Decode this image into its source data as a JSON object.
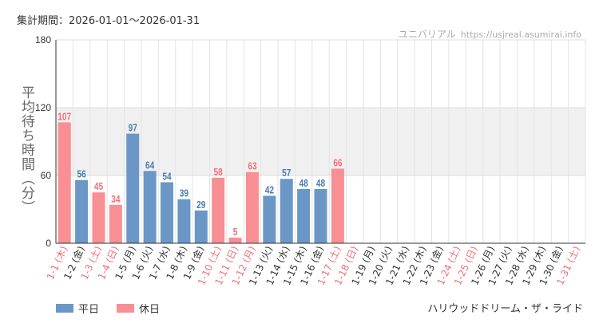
{
  "header": {
    "period": "集計期間：2026-01-01～2026-01-31",
    "source_name": "ユニバリアル",
    "source_site": "https://usjreal.asumirai.info"
  },
  "footer": {
    "ride_name": "ハリウッドドリーム・ザ・ライド"
  },
  "colors": {
    "weekday": "#6b97c7",
    "holiday": "#f88f94",
    "weekday_label": "#4a7bb0",
    "holiday_label": "#f36f76",
    "band": "#f0f0f0",
    "grid": "#e4e4e4"
  },
  "chart_data": {
    "type": "bar",
    "ylabel": "平均待ち時間（分）",
    "ylim": [
      0,
      180
    ],
    "yticks": [
      0,
      60,
      120,
      180
    ],
    "shaded_band": [
      60,
      120
    ],
    "legend": [
      {
        "name": "平日",
        "key": "weekday"
      },
      {
        "name": "休日",
        "key": "holiday"
      }
    ],
    "categories": [
      "1-1 (木)",
      "1-2 (金)",
      "1-3 (土)",
      "1-4 (日)",
      "1-5 (月)",
      "1-6 (火)",
      "1-7 (水)",
      "1-8 (木)",
      "1-9 (金)",
      "1-10 (土)",
      "1-11 (日)",
      "1-12 (月)",
      "1-13 (火)",
      "1-14 (水)",
      "1-15 (木)",
      "1-16 (金)",
      "1-17 (土)",
      "1-18 (日)",
      "1-19 (月)",
      "1-20 (火)",
      "1-21 (水)",
      "1-22 (木)",
      "1-23 (金)",
      "1-24 (土)",
      "1-25 (日)",
      "1-26 (月)",
      "1-27 (火)",
      "1-28 (水)",
      "1-29 (木)",
      "1-30 (金)",
      "1-31 (土)"
    ],
    "day_type": [
      "holiday",
      "weekday",
      "holiday",
      "holiday",
      "weekday",
      "weekday",
      "weekday",
      "weekday",
      "weekday",
      "holiday",
      "holiday",
      "holiday",
      "weekday",
      "weekday",
      "weekday",
      "weekday",
      "holiday",
      "holiday",
      "weekday",
      "weekday",
      "weekday",
      "weekday",
      "weekday",
      "holiday",
      "holiday",
      "weekday",
      "weekday",
      "weekday",
      "weekday",
      "weekday",
      "holiday"
    ],
    "values": [
      107,
      56,
      45,
      34,
      97,
      64,
      54,
      39,
      29,
      58,
      5,
      63,
      42,
      57,
      48,
      48,
      66,
      null,
      null,
      null,
      null,
      null,
      null,
      null,
      null,
      null,
      null,
      null,
      null,
      null,
      null
    ]
  }
}
